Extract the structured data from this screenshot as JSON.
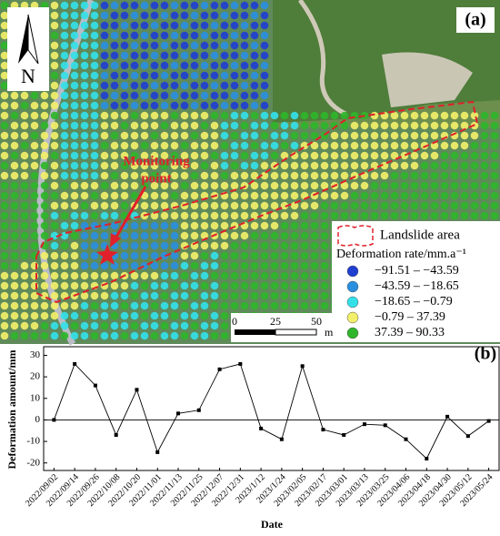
{
  "map": {
    "panel_label": "(a)",
    "north": "N",
    "annotation": [
      "Monitoring",
      "point"
    ],
    "legend": {
      "area": "Landslide area",
      "title": "Deformation rate/mm.a⁻¹",
      "classes": [
        {
          "label": "−91.51 – −43.59",
          "color": "#1f3fd1"
        },
        {
          "label": "−43.59 – −18.65",
          "color": "#2b8fe0"
        },
        {
          "label": "−18.65 – −0.79",
          "color": "#34e0e8"
        },
        {
          "label": "−0.79 – 37.39",
          "color": "#f2ef6a"
        },
        {
          "label": "37.39 – 90.33",
          "color": "#2fb52a"
        }
      ]
    },
    "scale": {
      "labels": [
        "0",
        "25",
        "50"
      ],
      "unit": "m"
    }
  },
  "chart_data": {
    "type": "line",
    "panel_label": "(b)",
    "x_label": "Date",
    "y_label": "Deformation amount/mm",
    "categories": [
      "2022/09/02",
      "2022/09/14",
      "2022/09/26",
      "2022/10/08",
      "2022/10/20",
      "2022/11/01",
      "2022/11/13",
      "2022/11/25",
      "2022/12/07",
      "2022/12/31",
      "2023/1/12",
      "2023/1/24",
      "2023/02/05",
      "2023/02/17",
      "2023/03/01",
      "2023/03/13",
      "2023/03/25",
      "2023/04/06",
      "2023/04/18",
      "2023/04/30",
      "2023/05/12",
      "2023/05/24"
    ],
    "values": [
      0,
      26,
      16,
      -7,
      14,
      -15,
      3,
      4.5,
      23.5,
      26,
      -4,
      -9,
      25,
      -4.5,
      -7,
      -2,
      -2.5,
      -9,
      -18,
      1.5,
      -7.5,
      -0.5
    ],
    "color": "#000000",
    "reference_line": 0,
    "ylim": [
      -23.5,
      34
    ],
    "yticks": [
      -20,
      -10,
      0,
      10,
      20,
      30
    ]
  }
}
